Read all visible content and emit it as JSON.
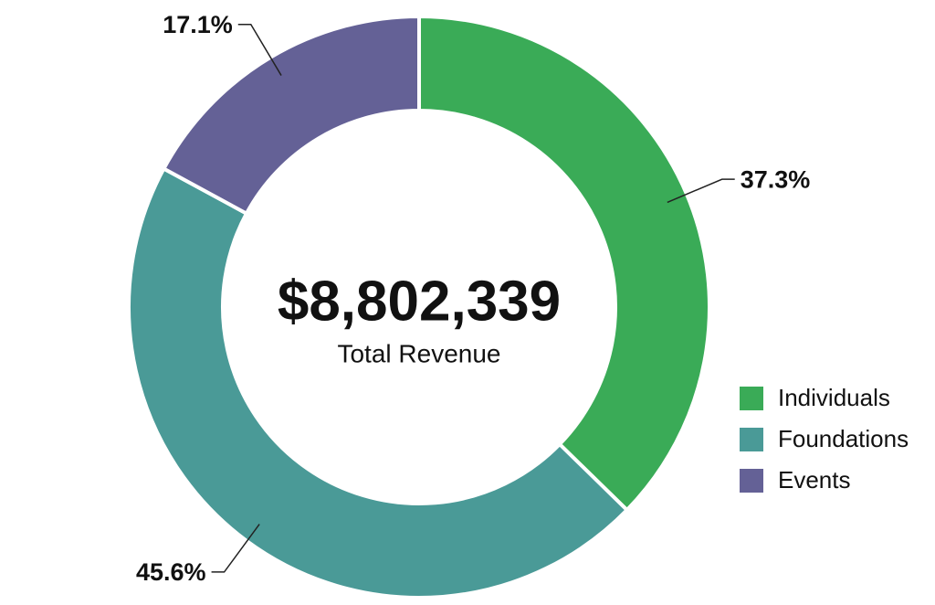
{
  "chart_data": {
    "type": "pie",
    "center_value": "$8,802,339",
    "center_label": "Total Revenue",
    "categories": [
      "Individuals",
      "Foundations",
      "Events"
    ],
    "values": [
      37.3,
      45.6,
      17.1
    ],
    "value_labels": [
      "37.3%",
      "45.6%",
      "17.1%"
    ],
    "colors": [
      "#3aab57",
      "#4a9a97",
      "#646196"
    ]
  }
}
